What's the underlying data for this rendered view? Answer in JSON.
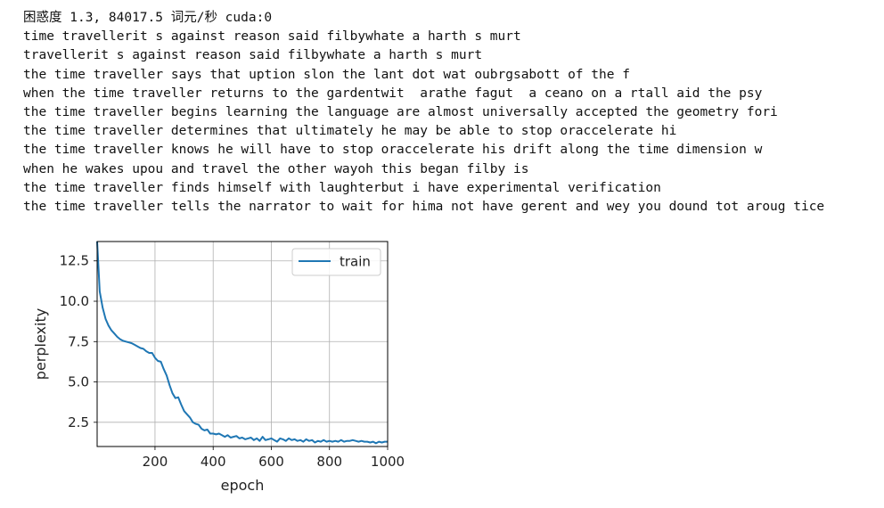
{
  "output": {
    "header": "困惑度 1.3, 84017.5 词元/秒 cuda:0",
    "lines": [
      "time travellerit s against reason said filbywhate a harth s murt",
      "travellerit s against reason said filbywhate a harth s murt",
      "the time traveller says that uption slon the lant dot wat oubrgsabott of the f",
      "when the time traveller returns to the gardentwit  arathe fagut  a ceano on a rtall aid the psy",
      "the time traveller begins learning the language are almost universally accepted the geometry fori",
      "the time traveller determines that ultimately he may be able to stop oraccelerate hi",
      "the time traveller knows he will have to stop oraccelerate his drift along the time dimension w",
      "when he wakes upou and travel the other wayoh this began filby is",
      "the time traveller finds himself with laughterbut i have experimental verification",
      "the time traveller tells the narrator to wait for hima not have gerent and wey you dound tot aroug tice"
    ]
  },
  "chart_data": {
    "type": "line",
    "xlabel": "epoch",
    "ylabel": "perplexity",
    "xlim": [
      1,
      1000
    ],
    "ylim": [
      1.0,
      13.7
    ],
    "xticks": [
      200,
      400,
      600,
      800,
      1000
    ],
    "xtick_labels": [
      "200",
      "400",
      "600",
      "800",
      "1000"
    ],
    "yticks": [
      2.5,
      5.0,
      7.5,
      10.0,
      12.5
    ],
    "ytick_labels": [
      "2.5",
      "5.0",
      "7.5",
      "10.0",
      "12.5"
    ],
    "grid": true,
    "legend_position": "top-right",
    "series": [
      {
        "name": "train",
        "color": "#1f77b4",
        "x": [
          1,
          10,
          20,
          30,
          40,
          50,
          60,
          70,
          80,
          90,
          100,
          110,
          120,
          130,
          140,
          150,
          160,
          170,
          180,
          190,
          200,
          210,
          220,
          230,
          240,
          250,
          260,
          270,
          280,
          290,
          300,
          310,
          320,
          330,
          340,
          350,
          360,
          370,
          380,
          390,
          400,
          410,
          420,
          430,
          440,
          450,
          460,
          470,
          480,
          490,
          500,
          510,
          520,
          530,
          540,
          550,
          560,
          570,
          580,
          590,
          600,
          610,
          620,
          630,
          640,
          650,
          660,
          670,
          680,
          690,
          700,
          710,
          720,
          730,
          740,
          750,
          760,
          770,
          780,
          790,
          800,
          810,
          820,
          830,
          840,
          850,
          860,
          870,
          880,
          890,
          900,
          910,
          920,
          930,
          940,
          950,
          960,
          970,
          980,
          990,
          1000
        ],
        "values": [
          13.7,
          10.6,
          9.6,
          8.9,
          8.5,
          8.2,
          8.0,
          7.8,
          7.65,
          7.55,
          7.5,
          7.45,
          7.4,
          7.3,
          7.2,
          7.1,
          7.05,
          6.9,
          6.8,
          6.8,
          6.5,
          6.3,
          6.25,
          5.8,
          5.4,
          4.8,
          4.3,
          4.0,
          4.05,
          3.6,
          3.2,
          3.0,
          2.8,
          2.5,
          2.4,
          2.35,
          2.1,
          2.0,
          2.05,
          1.8,
          1.8,
          1.75,
          1.8,
          1.7,
          1.6,
          1.7,
          1.55,
          1.6,
          1.65,
          1.5,
          1.55,
          1.45,
          1.5,
          1.55,
          1.4,
          1.5,
          1.35,
          1.6,
          1.4,
          1.45,
          1.5,
          1.4,
          1.3,
          1.5,
          1.45,
          1.35,
          1.5,
          1.4,
          1.45,
          1.35,
          1.4,
          1.3,
          1.45,
          1.35,
          1.4,
          1.25,
          1.35,
          1.3,
          1.4,
          1.3,
          1.35,
          1.3,
          1.35,
          1.3,
          1.4,
          1.3,
          1.35,
          1.35,
          1.4,
          1.35,
          1.3,
          1.35,
          1.3,
          1.3,
          1.25,
          1.3,
          1.2,
          1.3,
          1.25,
          1.3,
          1.3
        ]
      }
    ]
  }
}
